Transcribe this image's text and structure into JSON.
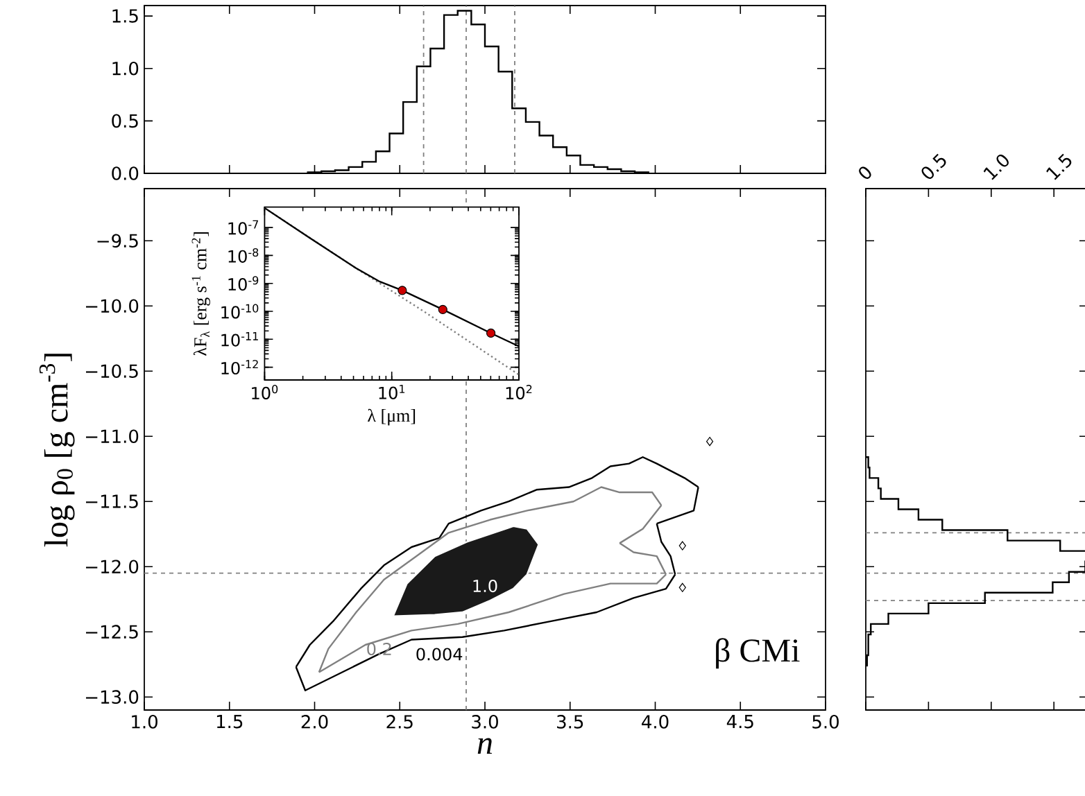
{
  "chart_data": [
    {
      "type": "histogram",
      "bins": [
        1.96,
        2.04,
        2.12,
        2.2,
        2.28,
        2.36,
        2.44,
        2.52,
        2.6,
        2.68,
        2.76,
        2.84,
        2.92,
        3.0,
        3.08,
        3.16,
        3.24,
        3.32,
        3.4,
        3.48,
        3.56,
        3.64,
        3.72,
        3.8,
        3.88,
        3.96
      ],
      "values": [
        0.01,
        0.02,
        0.03,
        0.06,
        0.11,
        0.21,
        0.38,
        0.68,
        1.02,
        1.19,
        1.51,
        1.55,
        1.42,
        1.21,
        0.97,
        0.62,
        0.49,
        0.36,
        0.25,
        0.17,
        0.08,
        0.06,
        0.04,
        0.02,
        0.01
      ],
      "color": "#000000",
      "xlim": [
        1,
        5
      ],
      "xticks": [
        {
          "value": 1,
          "label": null
        },
        {
          "value": 1.5,
          "label": null
        },
        {
          "value": 2,
          "label": null
        },
        {
          "value": 2.5,
          "label": null
        },
        {
          "value": 3,
          "label": null
        },
        {
          "value": 3.5,
          "label": null
        },
        {
          "value": 4,
          "label": null
        },
        {
          "value": 4.5,
          "label": null
        },
        {
          "value": 5,
          "label": null
        }
      ],
      "ylim": [
        0,
        1.6
      ],
      "yticks": [
        {
          "value": 0,
          "label": "0.0"
        },
        0.5,
        {
          "value": 1,
          "label": "1.0"
        },
        1.5
      ],
      "tick_labels": "y",
      "ref_lines": [
        {
          "axis": "x",
          "value": 2.64,
          "color": "#808080",
          "line_style": "dashed"
        },
        {
          "axis": "x",
          "value": 2.89,
          "color": "#808080",
          "line_style": "dashed"
        },
        {
          "axis": "x",
          "value": 3.175,
          "color": "#808080",
          "line_style": "dashed"
        }
      ]
    },
    {
      "type": "line",
      "xlabel": "n",
      "ylabel": "log ρ$_{0}$  [g cm$^{-3}$]",
      "xlim": [
        1,
        5
      ],
      "xticks": [
        {
          "value": 1,
          "label": "1.0"
        },
        1.5,
        {
          "value": 2,
          "label": "2.0"
        },
        2.5,
        {
          "value": 3,
          "label": "3.0"
        },
        3.5,
        {
          "value": 4,
          "label": "4.0"
        },
        4.5,
        {
          "value": 5,
          "label": "5.0"
        }
      ],
      "ylim": [
        -13.1,
        -9.1
      ],
      "yticks": [
        {
          "value": -13,
          "label": "−13.0"
        },
        {
          "value": -12.5,
          "label": "−12.5"
        },
        {
          "value": -12,
          "label": "−12.0"
        },
        {
          "value": -11.5,
          "label": "−11.5"
        },
        {
          "value": -11,
          "label": "−11.0"
        },
        {
          "value": -10.5,
          "label": "−10.5"
        },
        {
          "value": -10,
          "label": "−10.0"
        },
        {
          "value": -9.5,
          "label": "−9.5"
        }
      ],
      "series": [
        {
          "type": "line",
          "color": "#000000",
          "x": [
            1.891,
            1.945,
            2.162,
            2.379,
            2.569,
            2.868,
            3.113,
            3.384,
            3.656,
            3.873,
            4.063,
            4.117
          ],
          "values": [
            -12.77,
            -12.95,
            -12.81,
            -12.67,
            -12.56,
            -12.54,
            -12.49,
            -12.42,
            -12.35,
            -12.24,
            -12.17,
            -12.06
          ]
        },
        {
          "type": "line",
          "color": "#000000",
          "x": [
            1.891,
            1.972,
            2.108,
            2.271,
            2.407,
            2.569,
            2.732,
            2.787,
            2.977,
            3.14,
            3.303,
            3.493,
            3.629,
            3.737,
            3.846,
            3.927,
            4.009,
            4.172,
            4.253
          ],
          "values": [
            -12.77,
            -12.6,
            -12.42,
            -12.17,
            -11.99,
            -11.85,
            -11.78,
            -11.67,
            -11.57,
            -11.5,
            -11.41,
            -11.39,
            -11.32,
            -11.23,
            -11.21,
            -11.16,
            -11.21,
            -11.32,
            -11.39
          ]
        },
        {
          "type": "line",
          "color": "#000000",
          "x": [
            4.009,
            4.226,
            4.253
          ],
          "values": [
            -11.67,
            -11.57,
            -11.39
          ]
        },
        {
          "type": "line",
          "color": "#000000",
          "x": [
            4.009,
            4.036,
            4.09,
            4.117
          ],
          "values": [
            -11.67,
            -11.81,
            -11.92,
            -12.06
          ]
        },
        {
          "type": "line",
          "color": "#808080",
          "x": [
            2.026,
            2.298,
            2.569,
            2.841,
            3.14,
            3.465,
            3.737,
            4.009,
            4.063
          ],
          "values": [
            -12.81,
            -12.6,
            -12.49,
            -12.44,
            -12.35,
            -12.21,
            -12.13,
            -12.13,
            -12.06
          ]
        },
        {
          "type": "line",
          "color": "#808080",
          "x": [
            2.026,
            2.081,
            2.244,
            2.407,
            2.597,
            2.787,
            3.031,
            3.248,
            3.52,
            3.683,
            3.791,
            3.982,
            4.036
          ],
          "values": [
            -12.81,
            -12.63,
            -12.35,
            -12.1,
            -11.92,
            -11.74,
            -11.64,
            -11.57,
            -11.5,
            -11.39,
            -11.43,
            -11.43,
            -11.53
          ]
        },
        {
          "type": "line",
          "color": "#808080",
          "x": [
            3.791,
            3.927,
            4.036
          ],
          "values": [
            -11.82,
            -11.71,
            -11.53
          ]
        },
        {
          "type": "line",
          "color": "#808080",
          "x": [
            3.791,
            3.873,
            4.009,
            4.063
          ],
          "values": [
            -11.82,
            -11.89,
            -11.92,
            -12.06
          ]
        },
        {
          "type": "line",
          "color": "#ffffff",
          "x": [
            2.461,
            2.705,
            2.868,
            3.031,
            3.167,
            3.248,
            3.289,
            3.316
          ],
          "values": [
            -12.38,
            -12.37,
            -12.35,
            -12.26,
            -12.17,
            -12.06,
            -11.92,
            -11.83
          ]
        },
        {
          "type": "line",
          "color": "#ffffff",
          "x": [
            2.461,
            2.542,
            2.705,
            2.895,
            3.167,
            3.248,
            3.316
          ],
          "values": [
            -12.38,
            -12.13,
            -11.92,
            -11.81,
            -11.69,
            -11.71,
            -11.83
          ]
        },
        {
          "type": "scatter",
          "color": "#000000",
          "marker": "diamond",
          "x": [
            4.32,
            4.16,
            4.16
          ],
          "values": [
            -11.04,
            -11.84,
            -12.16
          ]
        }
      ],
      "annotations": [
        "0.004",
        "0.2",
        "1.0",
        "β CMi"
      ],
      "ref_lines": [
        {
          "axis": "x",
          "value": 2.89,
          "color": "#808080",
          "line_style": "dashed"
        },
        {
          "axis": "y",
          "value": -12.05,
          "color": "#808080",
          "line_style": "dashed"
        }
      ]
    },
    {
      "type": "line",
      "log": "xy",
      "xlabel": "λ [μm]",
      "ylabel": "λF$_{λ}$ [erg s$^{-1}$ cm$^{-2}$]",
      "xlim": [
        1,
        100
      ],
      "xticks": [
        {
          "value": 1,
          "label": "10$^{0}$"
        },
        {
          "value": 10,
          "label": "10$^{1}$"
        },
        {
          "value": 100,
          "label": "10$^{2}$"
        }
      ],
      "ylim": [
        3.5e-13,
        5.4e-07
      ],
      "yticks": [
        {
          "value": 1e-12,
          "label": "10$^{-12}$"
        },
        {
          "value": 1e-11,
          "label": "10$^{-11}$"
        },
        {
          "value": 1e-10,
          "label": "10$^{-10}$"
        },
        {
          "value": 1e-09,
          "label": "10$^{-9}$"
        },
        {
          "value": 1e-08,
          "label": "10$^{-8}$"
        },
        {
          "value": 1e-07,
          "label": "10$^{-7}$"
        }
      ],
      "series": [
        {
          "type": "line",
          "color": "#808080",
          "line_style": "dotted",
          "x": [
            1,
            5.24,
            18.3,
            100
          ],
          "values": [
            5e-07,
            3.5e-09,
            9.3e-11,
            5.4e-13
          ]
        },
        {
          "type": "line",
          "color": "#000000",
          "x": [
            1,
            2.27,
            5.24,
            7.93,
            12.1,
            25.2,
            60.2,
            100
          ],
          "values": [
            5e-07,
            4.2e-08,
            3.5e-09,
            1.2e-09,
            5.6e-10,
            1.16e-10,
            1.66e-11,
            5.6e-12
          ]
        },
        {
          "type": "scatter",
          "color": "#cc0000",
          "marker": "circle",
          "x": [
            12.1,
            25.2,
            60.2
          ],
          "values": [
            5.6e-10,
            1.16e-10,
            1.66e-11
          ]
        }
      ]
    },
    {
      "type": "histogram",
      "orientation": "horizontal",
      "bins": [
        -12.76,
        -12.68,
        -12.6,
        -12.52,
        -12.44,
        -12.36,
        -12.28,
        -12.2,
        -12.12,
        -12.04,
        -11.96,
        -11.88,
        -11.8,
        -11.72,
        -11.64,
        -11.56,
        -11.48,
        -11.4,
        -11.32,
        -11.24,
        -11.16
      ],
      "values": [
        0.01,
        0.02,
        0.02,
        0.04,
        0.18,
        0.5,
        0.95,
        1.49,
        1.62,
        1.75,
        1.77,
        1.55,
        1.13,
        0.61,
        0.42,
        0.26,
        0.12,
        0.1,
        0.03,
        0.02
      ],
      "color": "#000000",
      "xlim": [
        0,
        1.77
      ],
      "xticks": [
        0,
        0.5,
        {
          "value": 1,
          "label": "1.0"
        },
        1.5
      ],
      "ylim": [
        -13.1,
        -9.1
      ],
      "yticks": [
        {
          "value": -13,
          "label": null
        },
        {
          "value": -12.5,
          "label": null
        },
        {
          "value": -12,
          "label": null
        },
        {
          "value": -11.5,
          "label": null
        },
        {
          "value": -11,
          "label": null
        },
        {
          "value": -10.5,
          "label": null
        },
        {
          "value": -10,
          "label": null
        },
        {
          "value": -9.5,
          "label": null
        }
      ],
      "tick_labels": "x",
      "ref_lines": [
        {
          "axis": "y",
          "value": -11.74,
          "color": "#808080",
          "line_style": "dashed"
        },
        {
          "axis": "y",
          "value": -12.05,
          "color": "#808080",
          "line_style": "dashed"
        },
        {
          "axis": "y",
          "value": -12.26,
          "color": "#808080",
          "line_style": "dashed"
        }
      ]
    }
  ]
}
